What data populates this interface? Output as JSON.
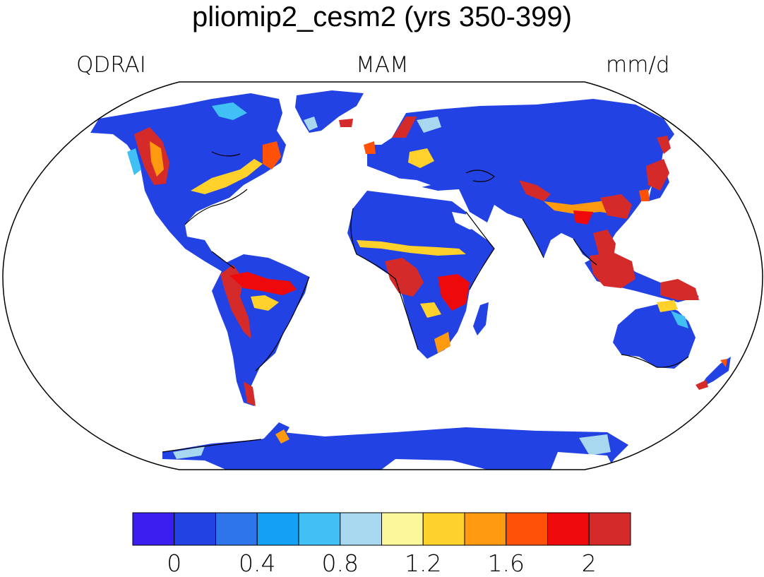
{
  "header": {
    "title": "pliomip2_cesm2 (yrs 350-399)",
    "variable": "QDRAI",
    "season": "MAM",
    "units": "mm/d"
  },
  "colorbar": {
    "colors": [
      "#3a1ff0",
      "#2342e4",
      "#2e74ea",
      "#14a0f5",
      "#40c0f5",
      "#a8d8f0",
      "#fcf89a",
      "#ffd12a",
      "#ff9a10",
      "#ff5208",
      "#ee0a0a",
      "#d42a2a"
    ],
    "tick_labels": [
      "0",
      "0.4",
      "0.8",
      "1.2",
      "1.6",
      "2"
    ]
  },
  "map": {
    "projection": "Robinson",
    "ocean_color": "#ffffff",
    "dominant_land_color": "#2342e4"
  }
}
